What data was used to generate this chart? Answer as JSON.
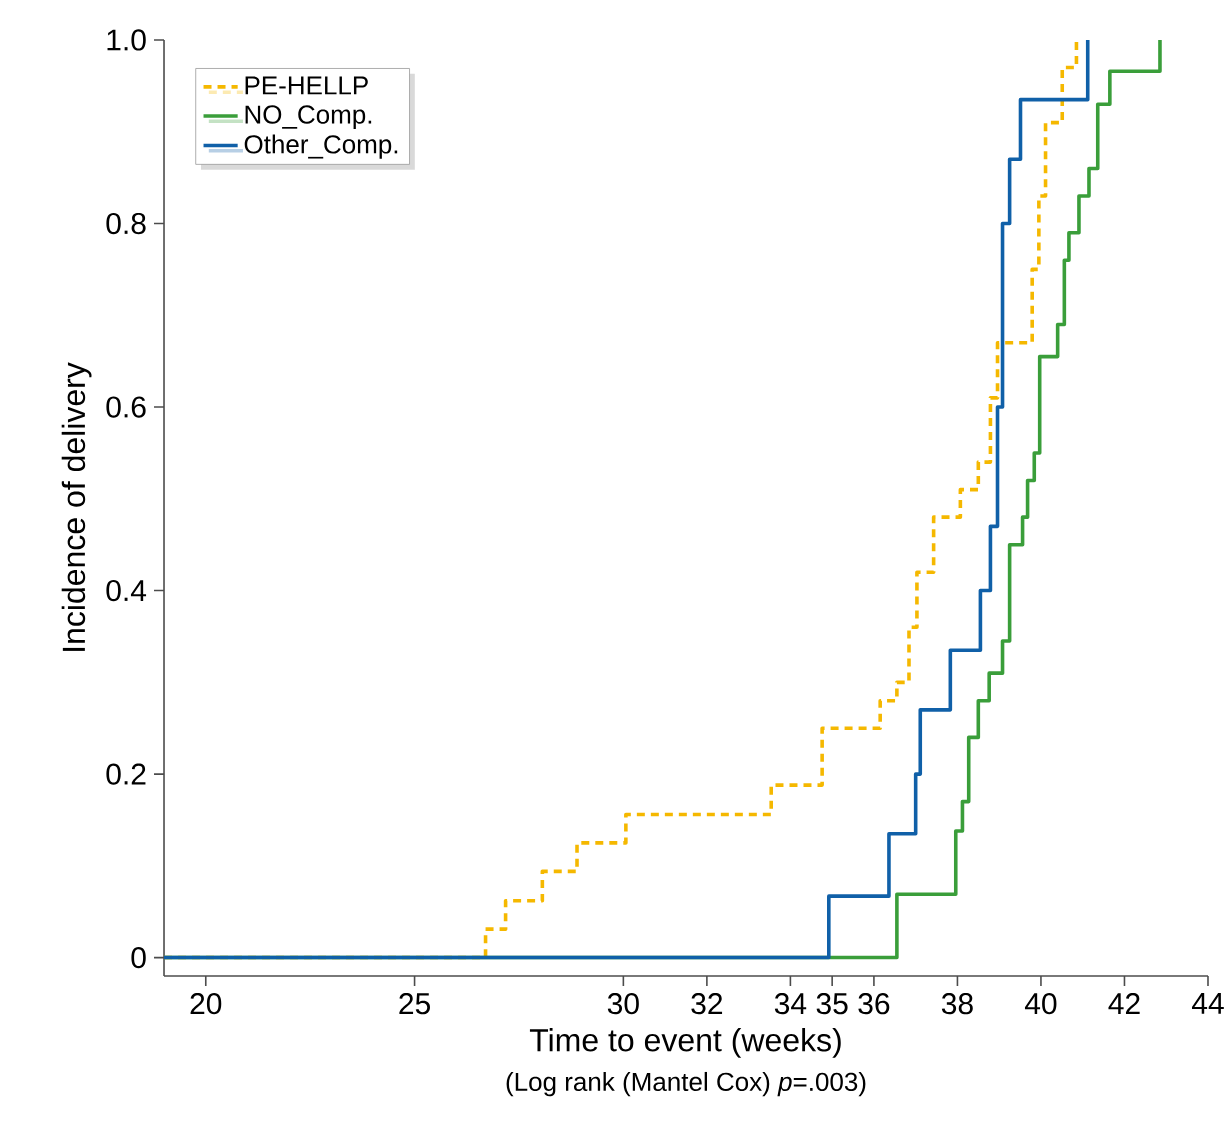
{
  "chart_data": {
    "type": "step",
    "xlabel": "Time to event (weeks)",
    "ylabel": "Incidence of delivery",
    "annotations": [
      "(Log rank (Mantel Cox) *p*=.003)"
    ],
    "xlim": [
      19,
      44
    ],
    "xticks": [
      20,
      25,
      30,
      32,
      34,
      35,
      36,
      38,
      40,
      42,
      44
    ],
    "ylim": [
      -0.02,
      1.0
    ],
    "yticks": [
      0,
      0.2,
      0.4,
      0.6,
      0.8,
      {
        "value": 1.0,
        "label": "1.0"
      }
    ],
    "legend": "top left",
    "grid": false,
    "series": [
      {
        "name": "PE-HELLP",
        "color": "#f5b800",
        "line_style": "dashed",
        "x": [
          19,
          26.7,
          27.18,
          28.06,
          28.89,
          30.06,
          33.54,
          34.76,
          36.15,
          36.55,
          36.84,
          37.03,
          37.43,
          38.07,
          38.5,
          38.79,
          38.96,
          39.79,
          39.95,
          40.11,
          40.51,
          40.85
        ],
        "values": [
          0,
          0.031,
          0.062,
          0.094,
          0.125,
          0.156,
          0.188,
          0.25,
          0.28,
          0.3,
          0.36,
          0.42,
          0.48,
          0.51,
          0.54,
          0.61,
          0.67,
          0.75,
          0.83,
          0.91,
          0.97,
          1.0
        ]
      },
      {
        "name": "NO_Comp.",
        "color": "#3a9e3a",
        "line_style": "solid",
        "x": [
          19,
          36.55,
          37.96,
          38.12,
          38.27,
          38.5,
          38.76,
          39.08,
          39.25,
          39.56,
          39.68,
          39.84,
          39.97,
          40.4,
          40.56,
          40.67,
          40.91,
          41.15,
          41.36,
          41.65,
          42.85
        ],
        "values": [
          0,
          0.069,
          0.138,
          0.17,
          0.24,
          0.28,
          0.31,
          0.345,
          0.45,
          0.48,
          0.52,
          0.55,
          0.655,
          0.69,
          0.76,
          0.79,
          0.83,
          0.86,
          0.93,
          0.966,
          1.0
        ]
      },
      {
        "name": "Other_Comp.",
        "color": "#1060a8",
        "line_style": "solid",
        "x": [
          19,
          34.92,
          36.36,
          37.0,
          37.11,
          37.83,
          38.55,
          38.79,
          38.96,
          39.08,
          39.25,
          39.51,
          41.12
        ],
        "values": [
          0,
          0.067,
          0.135,
          0.2,
          0.27,
          0.335,
          0.4,
          0.47,
          0.6,
          0.8,
          0.87,
          0.935,
          1.0
        ]
      }
    ]
  }
}
